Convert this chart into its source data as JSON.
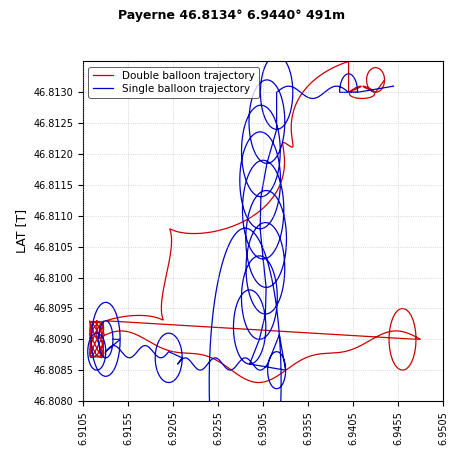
{
  "title": "Payerne 46.8134° 6.9440° 491m",
  "ylabel": "LAT [T]",
  "xlabel": "",
  "ylim": [
    46.808,
    46.8135
  ],
  "xlim": [
    6.9105,
    6.9505
  ],
  "yticks": [
    46.808,
    46.8085,
    46.809,
    46.8095,
    46.81,
    46.8105,
    46.811,
    46.8115,
    46.812,
    46.8125,
    46.813
  ],
  "xtick_step": 0.005,
  "single_color": "#0000cc",
  "double_color": "#cc0000",
  "bg_color": "#ffffff",
  "legend_single": "Single balloon trajectory",
  "legend_double": "Double balloon trajectory",
  "figsize": [
    4.63,
    4.61
  ],
  "dpi": 100,
  "grid_color": "#aaaaaa",
  "title_fontsize": 9,
  "label_fontsize": 9,
  "tick_fontsize": 7,
  "legend_fontsize": 7.5,
  "linewidth": 0.9
}
